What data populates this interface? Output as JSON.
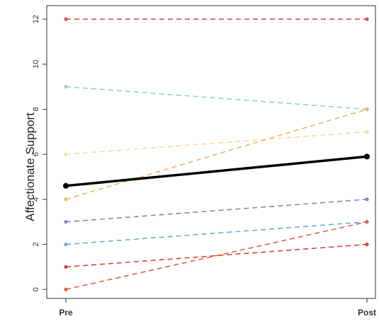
{
  "chart_data": {
    "type": "line",
    "xlabel": "",
    "ylabel": "Affectionate Support",
    "categories": [
      "Pre",
      "Post"
    ],
    "yticks": [
      0,
      2,
      4,
      6,
      8,
      10,
      12
    ],
    "ylim": [
      -0.4,
      12.6
    ],
    "grid": false,
    "legend": "none",
    "series": [
      {
        "values": [
          12,
          12
        ],
        "color": "#d9534f",
        "style": "dashed"
      },
      {
        "values": [
          9,
          8
        ],
        "color": "#8ed3cf",
        "style": "dashed"
      },
      {
        "values": [
          6,
          7
        ],
        "color": "#f6dfa2",
        "style": "dashed"
      },
      {
        "values": [
          4,
          8
        ],
        "color": "#f2b36b",
        "style": "dashed"
      },
      {
        "values": [
          3,
          4
        ],
        "color": "#8a7fbf",
        "style": "dashed"
      },
      {
        "values": [
          2,
          3
        ],
        "color": "#6aaed6",
        "style": "dashed"
      },
      {
        "values": [
          1,
          2
        ],
        "color": "#d7443b",
        "style": "dashed"
      },
      {
        "values": [
          0,
          3
        ],
        "color": "#e0604a",
        "style": "dashed"
      },
      {
        "values": [
          4.6,
          5.9
        ],
        "color": "#000000",
        "style": "solid"
      }
    ]
  }
}
